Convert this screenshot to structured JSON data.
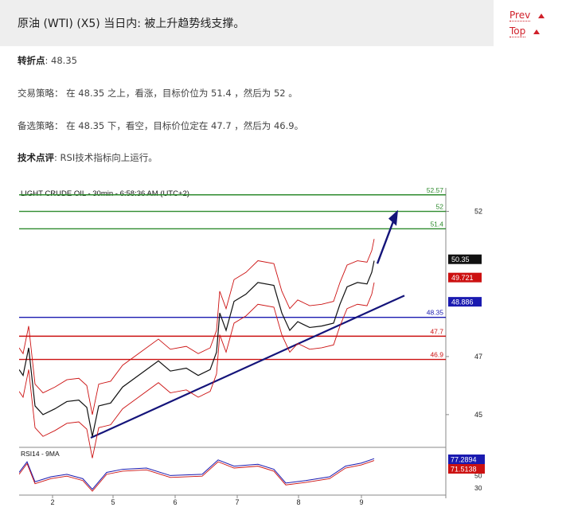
{
  "header": {
    "title": "原油 (WTI) (X5) 当日内: 被上升趋势线支撑。",
    "prev_label": "Prev",
    "top_label": "Top"
  },
  "body": {
    "pivot_label": "转折点",
    "pivot_value": ": 48.35",
    "strategy_label": "交易策略",
    "strategy_text": "： 在 48.35 之上，看涨，目标价位为 51.4 ，然后为 52 。",
    "alt_label": "备选策略",
    "alt_text": "： 在 48.35 下，看空，目标价位定在 47.7 ，然后为 46.9。",
    "tech_label": "技术点评",
    "tech_text": ": RSI技术指标向上运行。"
  },
  "chart_data": {
    "type": "line",
    "title": "LIGHT CRUDE OIL - 30min - 6:58:36 AM (UTC+2)",
    "price_axis": {
      "ticks": [
        "52",
        "47",
        "45"
      ],
      "range": [
        43.9,
        52.7
      ]
    },
    "x_tick_labels": [
      "2",
      "5",
      "6",
      "7",
      "8",
      "9"
    ],
    "levels": [
      {
        "label": "52.57",
        "value": 52.57,
        "color": "#2e8b2e"
      },
      {
        "label": "52",
        "value": 52,
        "color": "#2e8b2e"
      },
      {
        "label": "51.4",
        "value": 51.4,
        "color": "#2e8b2e"
      },
      {
        "label": "48.35",
        "value": 48.35,
        "color": "#1a1ab0"
      },
      {
        "label": "47.7",
        "value": 47.7,
        "color": "#cc1111"
      },
      {
        "label": "46.9",
        "value": 46.9,
        "color": "#cc1111"
      }
    ],
    "price_tags": [
      {
        "label": "50.35",
        "value": 50.35,
        "color": "#111111"
      },
      {
        "label": "49.721",
        "value": 49.721,
        "color": "#cc1111"
      },
      {
        "label": "48.886",
        "value": 48.886,
        "color": "#1a1ab0"
      }
    ],
    "price_series": [
      {
        "x": 0,
        "y": 46.55
      },
      {
        "x": 5,
        "y": 46.35
      },
      {
        "x": 12,
        "y": 47.3
      },
      {
        "x": 20,
        "y": 45.3
      },
      {
        "x": 30,
        "y": 45.0
      },
      {
        "x": 45,
        "y": 45.2
      },
      {
        "x": 60,
        "y": 45.45
      },
      {
        "x": 75,
        "y": 45.5
      },
      {
        "x": 85,
        "y": 45.25
      },
      {
        "x": 92,
        "y": 44.25
      },
      {
        "x": 100,
        "y": 45.3
      },
      {
        "x": 115,
        "y": 45.4
      },
      {
        "x": 130,
        "y": 45.95
      },
      {
        "x": 150,
        "y": 46.35
      },
      {
        "x": 175,
        "y": 46.85
      },
      {
        "x": 190,
        "y": 46.5
      },
      {
        "x": 210,
        "y": 46.6
      },
      {
        "x": 225,
        "y": 46.35
      },
      {
        "x": 240,
        "y": 46.55
      },
      {
        "x": 248,
        "y": 47.15
      },
      {
        "x": 252,
        "y": 48.5
      },
      {
        "x": 260,
        "y": 47.9
      },
      {
        "x": 270,
        "y": 48.9
      },
      {
        "x": 285,
        "y": 49.15
      },
      {
        "x": 300,
        "y": 49.55
      },
      {
        "x": 320,
        "y": 49.45
      },
      {
        "x": 330,
        "y": 48.5
      },
      {
        "x": 340,
        "y": 47.9
      },
      {
        "x": 350,
        "y": 48.2
      },
      {
        "x": 365,
        "y": 48.0
      },
      {
        "x": 380,
        "y": 48.05
      },
      {
        "x": 395,
        "y": 48.15
      },
      {
        "x": 403,
        "y": 48.8
      },
      {
        "x": 412,
        "y": 49.4
      },
      {
        "x": 425,
        "y": 49.55
      },
      {
        "x": 437,
        "y": 49.5
      },
      {
        "x": 443,
        "y": 49.9
      },
      {
        "x": 446,
        "y": 50.3
      }
    ],
    "rsi": {
      "label": "RSI14 - 9MA",
      "ticks": [
        "50",
        "30"
      ],
      "values": [
        {
          "label": "77.2894",
          "color": "#1a1ab0"
        },
        {
          "label": "71.5138",
          "color": "#cc1111"
        }
      ],
      "series": [
        {
          "x": 0,
          "y": 55
        },
        {
          "x": 10,
          "y": 72
        },
        {
          "x": 20,
          "y": 40
        },
        {
          "x": 40,
          "y": 48
        },
        {
          "x": 60,
          "y": 52
        },
        {
          "x": 80,
          "y": 45
        },
        {
          "x": 92,
          "y": 28
        },
        {
          "x": 110,
          "y": 55
        },
        {
          "x": 130,
          "y": 60
        },
        {
          "x": 160,
          "y": 62
        },
        {
          "x": 190,
          "y": 50
        },
        {
          "x": 230,
          "y": 52
        },
        {
          "x": 250,
          "y": 75
        },
        {
          "x": 270,
          "y": 65
        },
        {
          "x": 300,
          "y": 68
        },
        {
          "x": 320,
          "y": 60
        },
        {
          "x": 335,
          "y": 38
        },
        {
          "x": 360,
          "y": 42
        },
        {
          "x": 390,
          "y": 48
        },
        {
          "x": 410,
          "y": 65
        },
        {
          "x": 430,
          "y": 70
        },
        {
          "x": 446,
          "y": 77
        }
      ]
    }
  }
}
